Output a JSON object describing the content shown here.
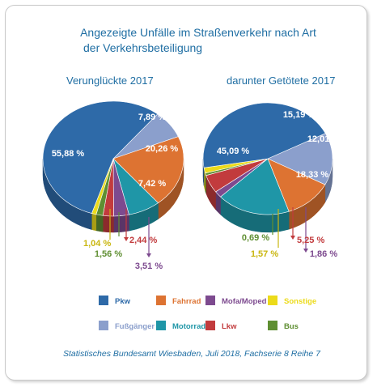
{
  "title_lines": [
    "Angezeigte Unfälle im Straßenverkehr nach Art",
    "der Verkehrsbeteiligung"
  ],
  "source": "Statistisches Bundesamt Wiesbaden, Juli 2018, Fachserie 8 Reihe 7",
  "colors": {
    "Pkw": "#2e6aa8",
    "Fußgänger": "#8b9fcc",
    "Fahrrad": "#dd7332",
    "Motorrad": "#1f96a7",
    "Mofa/Moped": "#7d4a8f",
    "Lkw": "#c23b3d",
    "Sonstige": "#ecdb1a",
    "Bus": "#5f8f32",
    "text": "#1f6ea3"
  },
  "legend": [
    [
      "Pkw",
      "Fahrrad",
      "Mofa/Moped",
      "Sonstige"
    ],
    [
      "Fußgänger",
      "Motorrad",
      "Lkw",
      "Bus"
    ]
  ],
  "chart_data": [
    {
      "type": "pie",
      "title": "Verunglückte 2017",
      "slices": [
        {
          "label": "Fußgänger",
          "value": 7.89,
          "text": "7,89 %"
        },
        {
          "label": "Fahrrad",
          "value": 20.26,
          "text": "20,26 %"
        },
        {
          "label": "Motorrad",
          "value": 7.42,
          "text": "7,42 %"
        },
        {
          "label": "Mofa/Moped",
          "value": 3.51,
          "text": "3,51 %"
        },
        {
          "label": "Lkw",
          "value": 2.44,
          "text": "2,44 %"
        },
        {
          "label": "Bus",
          "value": 1.56,
          "text": "1,56 %"
        },
        {
          "label": "Sonstige",
          "value": 1.04,
          "text": "1,04 %"
        },
        {
          "label": "Pkw",
          "value": 55.88,
          "text": "55,88 %"
        }
      ]
    },
    {
      "type": "pie",
      "title": "darunter Getötete 2017",
      "slices": [
        {
          "label": "Fußgänger",
          "value": 15.19,
          "text": "15,19 %"
        },
        {
          "label": "Fahrrad",
          "value": 12.01,
          "text": "12,01 %"
        },
        {
          "label": "Motorrad",
          "value": 18.33,
          "text": "18,33 %"
        },
        {
          "label": "Mofa/Moped",
          "value": 1.86,
          "text": "1,86 %"
        },
        {
          "label": "Lkw",
          "value": 5.25,
          "text": "5,25 %"
        },
        {
          "label": "Bus",
          "value": 0.69,
          "text": "0,69 %"
        },
        {
          "label": "Sonstige",
          "value": 1.57,
          "text": "1,57 %"
        },
        {
          "label": "Pkw",
          "value": 45.09,
          "text": "45,09 %"
        }
      ]
    }
  ]
}
